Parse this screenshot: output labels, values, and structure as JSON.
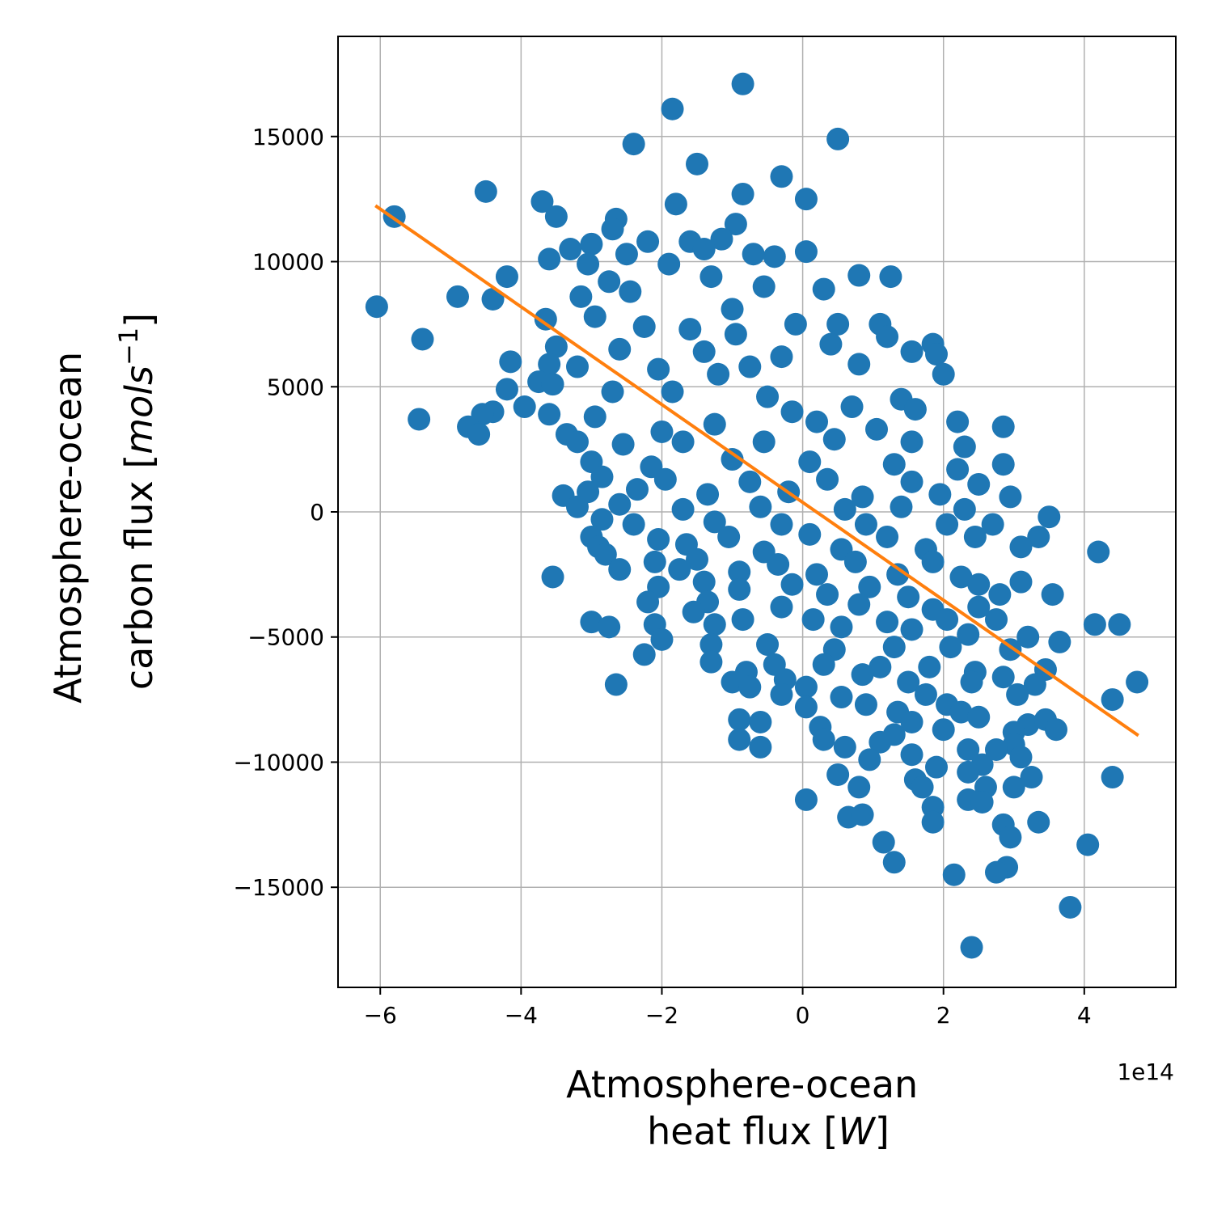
{
  "chart_data": {
    "type": "scatter",
    "xlabel": {
      "line1": "Atmosphere-ocean",
      "line2_prefix": "heat flux [",
      "line2_unit": "W",
      "line2_suffix": "]"
    },
    "ylabel": {
      "line1": "Atmosphere-ocean",
      "line2_prefix": "carbon flux [",
      "line2_unit": "mols",
      "line2_exp": "−1",
      "line2_suffix": "]"
    },
    "x_offset_label": "1e14",
    "x_scale": 100000000000000.0,
    "xlim": [
      -6.6,
      5.3
    ],
    "ylim": [
      -19000,
      19000
    ],
    "x_ticks": [
      -6,
      -4,
      -2,
      0,
      2,
      4
    ],
    "x_tick_labels": [
      "−6",
      "−4",
      "−2",
      "0",
      "2",
      "4"
    ],
    "y_ticks": [
      -15000,
      -10000,
      -5000,
      0,
      5000,
      10000,
      15000
    ],
    "y_tick_labels": [
      "−15000",
      "−10000",
      "−5000",
      "0",
      "5000",
      "10000",
      "15000"
    ],
    "grid": true,
    "colors": {
      "points": "#1f77b4",
      "fit_line": "#ff7f0e",
      "grid": "#b0b0b0"
    },
    "fit_line": {
      "x": [
        -6.05,
        4.75
      ],
      "y": [
        12200,
        -8900
      ]
    },
    "points": [
      [
        -0.85,
        17100
      ],
      [
        -1.85,
        16100
      ],
      [
        0.5,
        14900
      ],
      [
        -2.4,
        14700
      ],
      [
        -1.5,
        13900
      ],
      [
        -0.3,
        13400
      ],
      [
        -0.85,
        12700
      ],
      [
        -4.5,
        12800
      ],
      [
        0.05,
        12500
      ],
      [
        -3.7,
        12400
      ],
      [
        -1.8,
        12300
      ],
      [
        -5.8,
        11800
      ],
      [
        -3.5,
        11800
      ],
      [
        -2.65,
        11700
      ],
      [
        -0.95,
        11500
      ],
      [
        -2.7,
        11300
      ],
      [
        -1.15,
        10900
      ],
      [
        -2.2,
        10800
      ],
      [
        -1.6,
        10800
      ],
      [
        -3.0,
        10700
      ],
      [
        -1.4,
        10500
      ],
      [
        -3.3,
        10500
      ],
      [
        -3.6,
        10100
      ],
      [
        -2.5,
        10300
      ],
      [
        -0.4,
        10200
      ],
      [
        -0.7,
        10300
      ],
      [
        0.05,
        10400
      ],
      [
        -3.05,
        9900
      ],
      [
        -1.9,
        9900
      ],
      [
        1.25,
        9400
      ],
      [
        0.8,
        9450
      ],
      [
        -4.2,
        9400
      ],
      [
        -2.75,
        9200
      ],
      [
        -1.3,
        9400
      ],
      [
        -0.55,
        9000
      ],
      [
        0.3,
        8900
      ],
      [
        -4.9,
        8600
      ],
      [
        -4.4,
        8500
      ],
      [
        -3.15,
        8600
      ],
      [
        -2.45,
        8800
      ],
      [
        -6.05,
        8200
      ],
      [
        -1.0,
        8100
      ],
      [
        -3.65,
        7700
      ],
      [
        -2.95,
        7800
      ],
      [
        -0.1,
        7500
      ],
      [
        0.5,
        7500
      ],
      [
        1.1,
        7500
      ],
      [
        -2.25,
        7400
      ],
      [
        -1.6,
        7300
      ],
      [
        -0.95,
        7100
      ],
      [
        -5.4,
        6900
      ],
      [
        1.2,
        7000
      ],
      [
        0.4,
        6700
      ],
      [
        1.85,
        6700
      ],
      [
        -3.5,
        6600
      ],
      [
        -2.6,
        6500
      ],
      [
        -1.4,
        6400
      ],
      [
        -0.3,
        6200
      ],
      [
        1.9,
        6300
      ],
      [
        1.55,
        6400
      ],
      [
        -4.15,
        6000
      ],
      [
        -3.6,
        5900
      ],
      [
        -3.2,
        5800
      ],
      [
        -2.05,
        5700
      ],
      [
        -0.75,
        5800
      ],
      [
        0.8,
        5900
      ],
      [
        -1.2,
        5500
      ],
      [
        2.0,
        5500
      ],
      [
        -3.75,
        5200
      ],
      [
        -3.55,
        5100
      ],
      [
        -4.2,
        4900
      ],
      [
        -2.7,
        4800
      ],
      [
        -1.85,
        4800
      ],
      [
        -0.5,
        4600
      ],
      [
        1.4,
        4500
      ],
      [
        -3.95,
        4200
      ],
      [
        -4.4,
        4000
      ],
      [
        -4.55,
        3900
      ],
      [
        -3.6,
        3900
      ],
      [
        -2.95,
        3800
      ],
      [
        -5.45,
        3700
      ],
      [
        1.6,
        4100
      ],
      [
        0.7,
        4200
      ],
      [
        -0.15,
        4000
      ],
      [
        -4.75,
        3400
      ],
      [
        -4.6,
        3100
      ],
      [
        -3.35,
        3100
      ],
      [
        -1.25,
        3500
      ],
      [
        0.2,
        3600
      ],
      [
        1.05,
        3300
      ],
      [
        2.2,
        3600
      ],
      [
        2.85,
        3400
      ],
      [
        -2.0,
        3200
      ],
      [
        -3.2,
        2800
      ],
      [
        -2.55,
        2700
      ],
      [
        -1.7,
        2800
      ],
      [
        -0.55,
        2800
      ],
      [
        0.45,
        2900
      ],
      [
        1.55,
        2800
      ],
      [
        2.3,
        2600
      ],
      [
        2.85,
        1900
      ],
      [
        -3.0,
        2000
      ],
      [
        -2.15,
        1800
      ],
      [
        -1.0,
        2100
      ],
      [
        0.1,
        2000
      ],
      [
        1.3,
        1900
      ],
      [
        2.2,
        1700
      ],
      [
        -2.85,
        1400
      ],
      [
        -1.95,
        1300
      ],
      [
        -0.75,
        1200
      ],
      [
        0.35,
        1300
      ],
      [
        1.55,
        1200
      ],
      [
        2.5,
        1100
      ],
      [
        -3.05,
        800
      ],
      [
        -2.35,
        900
      ],
      [
        -1.35,
        700
      ],
      [
        -0.2,
        800
      ],
      [
        0.85,
        600
      ],
      [
        1.95,
        700
      ],
      [
        2.95,
        600
      ],
      [
        -3.4,
        650
      ],
      [
        -3.2,
        200
      ],
      [
        -2.6,
        300
      ],
      [
        -1.7,
        100
      ],
      [
        -0.6,
        200
      ],
      [
        0.6,
        100
      ],
      [
        1.4,
        200
      ],
      [
        2.3,
        100
      ],
      [
        3.5,
        -200
      ],
      [
        -2.85,
        -300
      ],
      [
        -2.4,
        -500
      ],
      [
        -1.25,
        -400
      ],
      [
        -0.3,
        -500
      ],
      [
        0.9,
        -500
      ],
      [
        2.05,
        -500
      ],
      [
        2.7,
        -500
      ],
      [
        -3.0,
        -1000
      ],
      [
        -2.05,
        -1100
      ],
      [
        -1.05,
        -1000
      ],
      [
        0.1,
        -900
      ],
      [
        1.2,
        -1000
      ],
      [
        2.45,
        -1000
      ],
      [
        3.35,
        -1000
      ],
      [
        -2.9,
        -1400
      ],
      [
        -1.65,
        -1300
      ],
      [
        -0.55,
        -1600
      ],
      [
        0.55,
        -1500
      ],
      [
        1.75,
        -1500
      ],
      [
        3.1,
        -1400
      ],
      [
        -2.8,
        -1700
      ],
      [
        -2.1,
        -2000
      ],
      [
        -1.5,
        -1900
      ],
      [
        -0.35,
        -2100
      ],
      [
        0.75,
        -2000
      ],
      [
        1.85,
        -2000
      ],
      [
        4.2,
        -1600
      ],
      [
        -2.6,
        -2300
      ],
      [
        -1.75,
        -2300
      ],
      [
        -0.9,
        -2400
      ],
      [
        0.2,
        -2500
      ],
      [
        1.35,
        -2500
      ],
      [
        2.25,
        -2600
      ],
      [
        -3.55,
        -2600
      ],
      [
        -1.4,
        -2800
      ],
      [
        -0.15,
        -2900
      ],
      [
        0.95,
        -3000
      ],
      [
        2.5,
        -2900
      ],
      [
        3.1,
        -2800
      ],
      [
        -2.05,
        -3000
      ],
      [
        -0.9,
        -3100
      ],
      [
        0.35,
        -3300
      ],
      [
        1.5,
        -3400
      ],
      [
        2.8,
        -3300
      ],
      [
        3.55,
        -3300
      ],
      [
        -2.2,
        -3600
      ],
      [
        -1.35,
        -3600
      ],
      [
        -0.3,
        -3800
      ],
      [
        0.8,
        -3700
      ],
      [
        1.85,
        -3900
      ],
      [
        2.5,
        -3800
      ],
      [
        -1.55,
        -4000
      ],
      [
        -0.85,
        -4300
      ],
      [
        0.15,
        -4300
      ],
      [
        1.2,
        -4400
      ],
      [
        2.05,
        -4300
      ],
      [
        2.75,
        -4300
      ],
      [
        -3.0,
        -4400
      ],
      [
        -2.75,
        -4600
      ],
      [
        -2.1,
        -4500
      ],
      [
        -1.25,
        -4500
      ],
      [
        0.55,
        -4600
      ],
      [
        1.55,
        -4700
      ],
      [
        2.35,
        -4900
      ],
      [
        3.2,
        -5000
      ],
      [
        4.15,
        -4500
      ],
      [
        4.5,
        -4500
      ],
      [
        -2.0,
        -5100
      ],
      [
        -1.3,
        -5300
      ],
      [
        -0.5,
        -5300
      ],
      [
        0.45,
        -5500
      ],
      [
        1.3,
        -5400
      ],
      [
        2.1,
        -5400
      ],
      [
        2.95,
        -5500
      ],
      [
        3.65,
        -5200
      ],
      [
        -2.25,
        -5700
      ],
      [
        -1.3,
        -6000
      ],
      [
        -0.4,
        -6100
      ],
      [
        0.3,
        -6100
      ],
      [
        1.1,
        -6200
      ],
      [
        1.8,
        -6200
      ],
      [
        2.45,
        -6400
      ],
      [
        3.45,
        -6300
      ],
      [
        -0.8,
        -6400
      ],
      [
        0.85,
        -6500
      ],
      [
        2.85,
        -6600
      ],
      [
        -0.25,
        -6700
      ],
      [
        -2.65,
        -6900
      ],
      [
        -1.0,
        -6800
      ],
      [
        0.05,
        -7000
      ],
      [
        1.5,
        -6800
      ],
      [
        2.4,
        -6800
      ],
      [
        3.3,
        -6900
      ],
      [
        4.75,
        -6800
      ],
      [
        -0.75,
        -7000
      ],
      [
        0.55,
        -7400
      ],
      [
        1.75,
        -7300
      ],
      [
        3.05,
        -7300
      ],
      [
        4.4,
        -7500
      ],
      [
        -0.3,
        -7300
      ],
      [
        0.9,
        -7700
      ],
      [
        2.05,
        -7700
      ],
      [
        0.05,
        -7800
      ],
      [
        1.35,
        -8000
      ],
      [
        2.25,
        -8000
      ],
      [
        -0.9,
        -8300
      ],
      [
        -0.6,
        -8400
      ],
      [
        0.25,
        -8600
      ],
      [
        1.55,
        -8400
      ],
      [
        2.5,
        -8200
      ],
      [
        3.2,
        -8500
      ],
      [
        3.45,
        -8300
      ],
      [
        1.3,
        -8900
      ],
      [
        2.0,
        -8700
      ],
      [
        3.0,
        -8800
      ],
      [
        3.6,
        -8700
      ],
      [
        -0.9,
        -9100
      ],
      [
        0.3,
        -9100
      ],
      [
        1.1,
        -9200
      ],
      [
        2.35,
        -9500
      ],
      [
        3.0,
        -9300
      ],
      [
        -0.6,
        -9400
      ],
      [
        0.6,
        -9400
      ],
      [
        1.55,
        -9700
      ],
      [
        2.75,
        -9500
      ],
      [
        3.1,
        -9800
      ],
      [
        0.95,
        -9900
      ],
      [
        1.9,
        -10200
      ],
      [
        2.55,
        -10100
      ],
      [
        0.5,
        -10500
      ],
      [
        1.6,
        -10700
      ],
      [
        2.35,
        -10400
      ],
      [
        3.25,
        -10600
      ],
      [
        4.4,
        -10600
      ],
      [
        1.7,
        -11000
      ],
      [
        2.6,
        -11000
      ],
      [
        3.0,
        -11000
      ],
      [
        0.8,
        -11000
      ],
      [
        0.05,
        -11500
      ],
      [
        2.35,
        -11500
      ],
      [
        1.85,
        -11800
      ],
      [
        2.55,
        -11600
      ],
      [
        0.65,
        -12200
      ],
      [
        0.85,
        -12100
      ],
      [
        1.85,
        -12400
      ],
      [
        2.85,
        -12500
      ],
      [
        3.35,
        -12400
      ],
      [
        1.15,
        -13200
      ],
      [
        2.95,
        -13000
      ],
      [
        4.05,
        -13300
      ],
      [
        1.3,
        -14000
      ],
      [
        2.9,
        -14200
      ],
      [
        2.15,
        -14500
      ],
      [
        2.75,
        -14400
      ],
      [
        3.8,
        -15800
      ],
      [
        2.4,
        -17400
      ]
    ]
  }
}
